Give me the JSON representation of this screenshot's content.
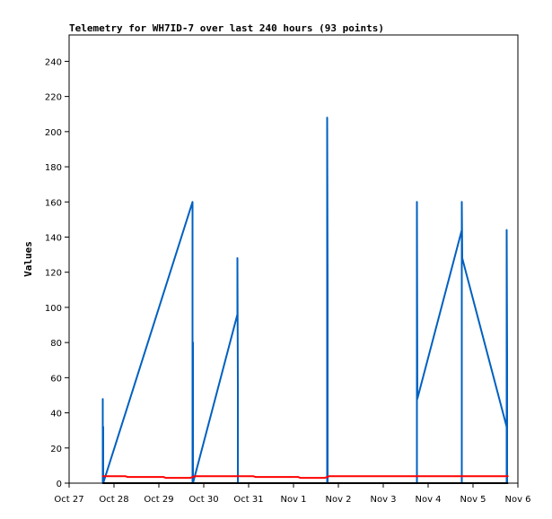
{
  "chart_data": {
    "type": "line",
    "title": "Telemetry for WH7ID-7 over last 240 hours (93 points)",
    "ylabel": "Values",
    "xlabel": "",
    "x_tick_labels": [
      "Oct 27",
      "Oct 28",
      "Oct 29",
      "Oct 30",
      "Oct 31",
      "Nov 1",
      "Nov 2",
      "Nov 3",
      "Nov 4",
      "Nov 5",
      "Nov 6"
    ],
    "xlim": [
      0,
      10
    ],
    "y_ticks": [
      0,
      20,
      40,
      60,
      80,
      100,
      120,
      140,
      160,
      180,
      200,
      220,
      240
    ],
    "ylim": [
      0,
      255
    ],
    "grid": false,
    "series": [
      {
        "color": "#0060c0",
        "points": [
          [
            0.75,
            48
          ],
          [
            0.75,
            0
          ],
          [
            0.76,
            32
          ],
          [
            0.76,
            0
          ],
          [
            2.75,
            160
          ],
          [
            2.75,
            0
          ],
          [
            2.76,
            80
          ],
          [
            2.76,
            0
          ],
          [
            3.75,
            96
          ],
          [
            3.75,
            128
          ],
          [
            3.76,
            56
          ],
          [
            3.76,
            0
          ],
          [
            5.75,
            0
          ],
          [
            5.75,
            208
          ],
          [
            5.76,
            112
          ],
          [
            5.76,
            0
          ],
          [
            7.75,
            0
          ],
          [
            7.75,
            160
          ],
          [
            7.76,
            48
          ],
          [
            8.75,
            144
          ],
          [
            8.75,
            0
          ],
          [
            8.75,
            160
          ],
          [
            8.76,
            128
          ],
          [
            9.75,
            32
          ],
          [
            9.75,
            0
          ],
          [
            9.75,
            144
          ],
          [
            9.76,
            72
          ],
          [
            9.76,
            0
          ]
        ]
      },
      {
        "color": "#ff0000",
        "points": [
          [
            0.75,
            4
          ],
          [
            1.25,
            4
          ],
          [
            1.3,
            3.5
          ],
          [
            2.1,
            3.5
          ],
          [
            2.15,
            3
          ],
          [
            2.7,
            3
          ],
          [
            2.8,
            4
          ],
          [
            4.1,
            4
          ],
          [
            4.15,
            3.5
          ],
          [
            5.1,
            3.5
          ],
          [
            5.15,
            3
          ],
          [
            5.7,
            3
          ],
          [
            5.8,
            4
          ],
          [
            9.78,
            4
          ]
        ]
      },
      {
        "color": "#000000",
        "points": [
          [
            0.75,
            0
          ],
          [
            9.78,
            0
          ]
        ]
      }
    ]
  }
}
